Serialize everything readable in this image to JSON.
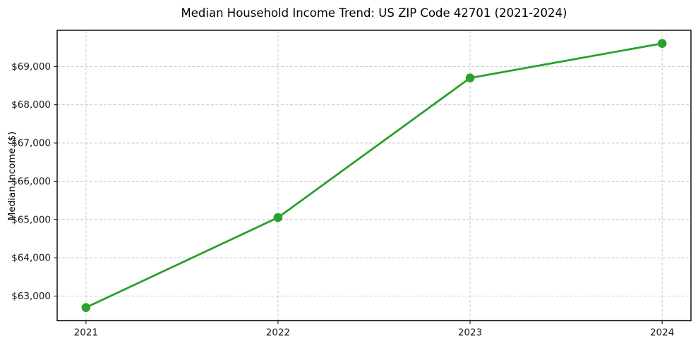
{
  "chart_data": {
    "type": "line",
    "title": "Median Household Income Trend: US ZIP Code 42701 (2021-2024)",
    "x": [
      "2021",
      "2022",
      "2023",
      "2024"
    ],
    "series": [
      {
        "name": "Median Household Income",
        "values": [
          62700,
          65050,
          68700,
          69600
        ]
      }
    ],
    "xlabel": "",
    "ylabel": "Median Income ($)",
    "ylim": [
      62355,
      69945
    ],
    "yticks": [
      63000,
      64000,
      65000,
      66000,
      67000,
      68000,
      69000
    ],
    "ytick_labels": [
      "$63,000",
      "$64,000",
      "$65,000",
      "$66,000",
      "$67,000",
      "$68,000",
      "$69,000"
    ],
    "grid": true,
    "grid_style": "dashed",
    "legend": false,
    "colors": {
      "line": "#2ca02c",
      "marker": "#2ca02c",
      "grid": "#c9c9c9",
      "spine": "#000000",
      "background": "#ffffff",
      "text": "#1a1a1a"
    }
  }
}
